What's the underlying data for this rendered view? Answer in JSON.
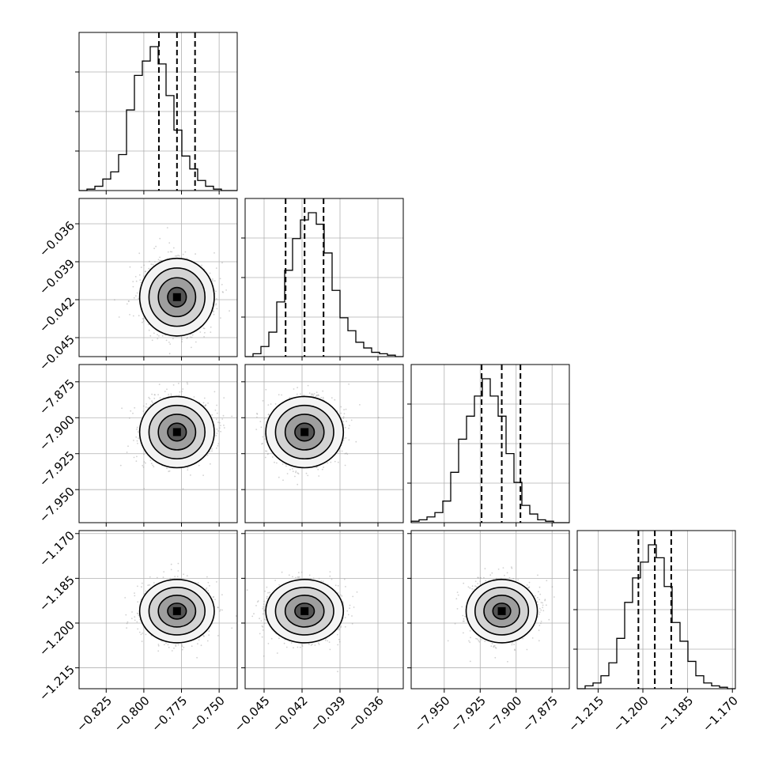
{
  "chart_data": {
    "type": "corner",
    "title": "",
    "parameters": [
      {
        "index": 0,
        "range": [
          -0.843,
          -0.738
        ],
        "mean": -0.778,
        "sd": 0.0105,
        "ticks": [
          -0.825,
          -0.8,
          -0.775,
          -0.75
        ],
        "tick_labels": [
          "−0.825",
          "−0.800",
          "−0.775",
          "−0.750"
        ],
        "quantiles": [
          -0.79,
          -0.778,
          -0.766
        ]
      },
      {
        "index": 1,
        "range": [
          -0.0465,
          -0.034
        ],
        "mean": -0.0418,
        "sd": 0.0013,
        "ticks": [
          -0.045,
          -0.042,
          -0.039,
          -0.036
        ],
        "tick_labels": [
          "−0.045",
          "−0.042",
          "−0.039",
          "−0.036"
        ],
        "quantiles": [
          -0.0433,
          -0.0418,
          -0.0403
        ]
      },
      {
        "index": 2,
        "range": [
          -7.973,
          -7.863
        ],
        "mean": -7.91,
        "sd": 0.0105,
        "ticks": [
          -7.95,
          -7.925,
          -7.9,
          -7.875
        ],
        "tick_labels": [
          "−7.950",
          "−7.925",
          "−7.900",
          "−7.875"
        ],
        "quantiles": [
          -7.924,
          -7.91,
          -7.897
        ]
      },
      {
        "index": 3,
        "range": [
          -1.222,
          -1.169
        ],
        "mean": -1.196,
        "sd": 0.0045,
        "ticks": [
          -1.215,
          -1.2,
          -1.185,
          -1.17
        ],
        "tick_labels": [
          "−1.215",
          "−1.200",
          "−1.185",
          "−1.170"
        ],
        "quantiles": [
          -1.2015,
          -1.196,
          -1.1905
        ]
      }
    ],
    "histograms": [
      {
        "param": 0,
        "bins": 20,
        "heights": [
          0,
          0.01,
          0.03,
          0.08,
          0.13,
          0.25,
          0.56,
          0.8,
          0.9,
          1.0,
          0.88,
          0.66,
          0.42,
          0.24,
          0.15,
          0.07,
          0.03,
          0.01,
          0,
          0
        ]
      },
      {
        "param": 1,
        "bins": 20,
        "heights": [
          0,
          0.02,
          0.07,
          0.17,
          0.38,
          0.6,
          0.82,
          0.95,
          1.0,
          0.92,
          0.72,
          0.46,
          0.27,
          0.18,
          0.1,
          0.06,
          0.03,
          0.02,
          0.01,
          0
        ]
      },
      {
        "param": 2,
        "bins": 20,
        "heights": [
          0.01,
          0.02,
          0.04,
          0.07,
          0.15,
          0.35,
          0.58,
          0.74,
          0.88,
          1.0,
          0.88,
          0.74,
          0.48,
          0.28,
          0.12,
          0.06,
          0.02,
          0.01,
          0,
          0
        ]
      },
      {
        "param": 3,
        "bins": 20,
        "heights": [
          0,
          0.02,
          0.04,
          0.09,
          0.18,
          0.35,
          0.6,
          0.77,
          0.88,
          1.0,
          0.91,
          0.71,
          0.46,
          0.33,
          0.19,
          0.09,
          0.04,
          0.02,
          0.01,
          0
        ]
      }
    ],
    "hist_ticks_fraction": [
      0.25,
      0.5,
      0.75
    ],
    "contour_levels_sigma": [
      0.5,
      1.0,
      1.5,
      2.0
    ],
    "grid": true
  }
}
